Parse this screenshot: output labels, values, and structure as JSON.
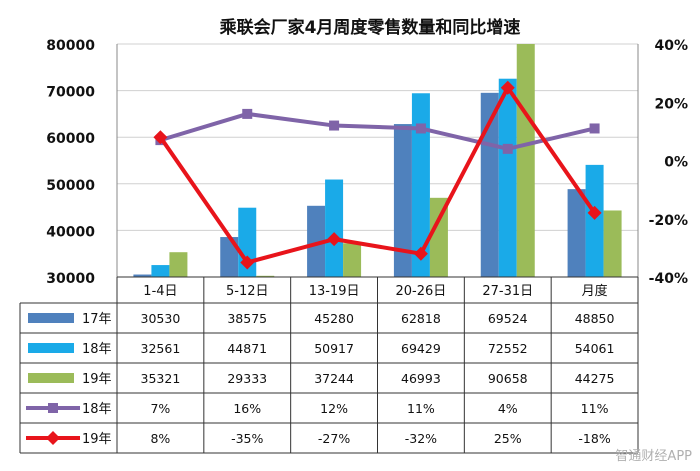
{
  "chart_data": {
    "type": "bar",
    "title": "乘联会厂家4月周度零售数量和同比增速",
    "categories": [
      "1-4日",
      "5-12日",
      "13-19日",
      "20-26日",
      "27-31日",
      "月度"
    ],
    "ylim": [
      30000,
      80000
    ],
    "yticks": [
      "30000",
      "40000",
      "50000",
      "60000",
      "70000",
      "80000"
    ],
    "y2lim": [
      -40,
      40
    ],
    "y2ticks": [
      "-40%",
      "-20%",
      "0%",
      "20%",
      "40%"
    ],
    "grid": true,
    "legend": "data table below plot",
    "bar_series": [
      {
        "name": "17年",
        "color": "#4f81bd",
        "values": [
          30530,
          38575,
          45280,
          62818,
          69524,
          48850
        ]
      },
      {
        "name": "18年",
        "color": "#1aaae8",
        "values": [
          32561,
          44871,
          50917,
          69429,
          72552,
          54061
        ]
      },
      {
        "name": "19年",
        "color": "#9bbb59",
        "values": [
          35321,
          29333,
          37244,
          46993,
          90658,
          44275
        ]
      }
    ],
    "line_series": [
      {
        "name": "18年",
        "color": "#7f64a8",
        "values": [
          7,
          16,
          12,
          11,
          4,
          11
        ],
        "labels": [
          "7%",
          "16%",
          "12%",
          "11%",
          "4%",
          "11%"
        ]
      },
      {
        "name": "19年",
        "color": "#e8141b",
        "values": [
          8,
          -35,
          -27,
          -32,
          25,
          -18
        ],
        "labels": [
          "8%",
          "-35%",
          "-27%",
          "-32%",
          "25%",
          "-18%"
        ]
      }
    ]
  },
  "watermark": "智通财经APP"
}
